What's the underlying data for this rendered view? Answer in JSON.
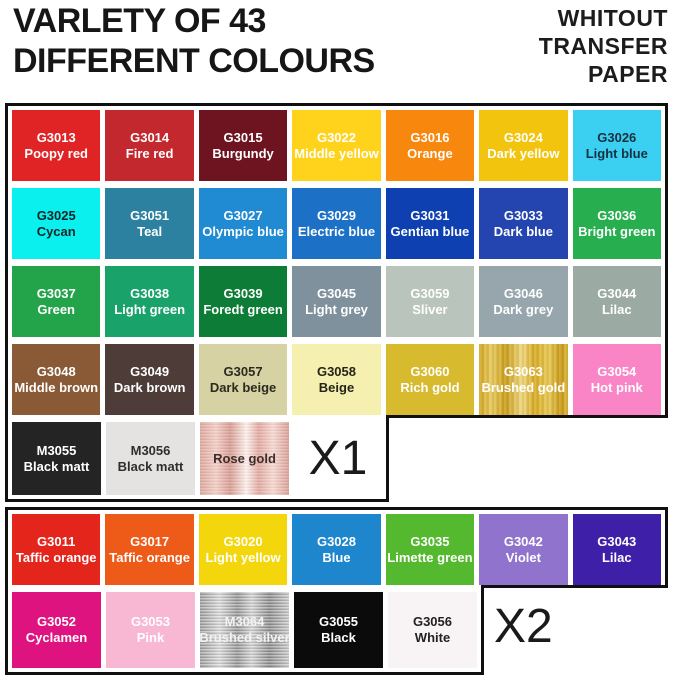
{
  "header": {
    "title_line1": "VARLETY OF 43",
    "title_line2": "DIFFERENT COLOURS",
    "note_line1": "WHITOUT",
    "note_line2": "TRANSFER",
    "note_line3": "PAPER"
  },
  "border_color": "#101010",
  "sections": [
    {
      "quantity_label": "X1",
      "main_rows": [
        [
          {
            "code": "G3013",
            "name": "Poopy red",
            "bg": "#e02425",
            "text_color": "#ffffff",
            "finish": "solid"
          },
          {
            "code": "G3014",
            "name": "Fire red",
            "bg": "#c2282d",
            "text_color": "#ffffff",
            "finish": "solid"
          },
          {
            "code": "G3015",
            "name": "Burgundy",
            "bg": "#6d1420",
            "text_color": "#ffffff",
            "finish": "solid"
          },
          {
            "code": "G3022",
            "name": "Middle yellow",
            "bg": "#ffd21c",
            "text_color": "#ffffff",
            "finish": "solid"
          },
          {
            "code": "G3016",
            "name": "Orange",
            "bg": "#f8870e",
            "text_color": "#ffffff",
            "finish": "solid"
          },
          {
            "code": "G3024",
            "name": "Dark yellow",
            "bg": "#f2c40e",
            "text_color": "#ffffff",
            "finish": "solid"
          },
          {
            "code": "G3026",
            "name": "Light blue",
            "bg": "#3bd0f1",
            "text_color": "#16303f",
            "finish": "solid"
          }
        ],
        [
          {
            "code": "G3025",
            "name": "Cycan",
            "bg": "#0af0ee",
            "text_color": "#102525",
            "finish": "solid"
          },
          {
            "code": "G3051",
            "name": "Teal",
            "bg": "#2d81a0",
            "text_color": "#ffffff",
            "finish": "solid"
          },
          {
            "code": "G3027",
            "name": "Olympic blue",
            "bg": "#208bd2",
            "text_color": "#ffffff",
            "finish": "solid"
          },
          {
            "code": "G3029",
            "name": "Electric blue",
            "bg": "#1c70c6",
            "text_color": "#ffffff",
            "finish": "solid"
          },
          {
            "code": "G3031",
            "name": "Gentian blue",
            "bg": "#0e40b1",
            "text_color": "#ffffff",
            "finish": "solid"
          },
          {
            "code": "G3033",
            "name": "Dark blue",
            "bg": "#2444b0",
            "text_color": "#ffffff",
            "finish": "solid"
          },
          {
            "code": "G3036",
            "name": "Bright green",
            "bg": "#27ae4f",
            "text_color": "#ffffff",
            "finish": "solid"
          }
        ],
        [
          {
            "code": "G3037",
            "name": "Green",
            "bg": "#23a44b",
            "text_color": "#ffffff",
            "finish": "solid"
          },
          {
            "code": "G3038",
            "name": "Light green",
            "bg": "#19a36b",
            "text_color": "#ffffff",
            "finish": "solid"
          },
          {
            "code": "G3039",
            "name": "Foredt green",
            "bg": "#0d7c36",
            "text_color": "#ffffff",
            "finish": "solid"
          },
          {
            "code": "G3045",
            "name": "Light grey",
            "bg": "#7f919c",
            "text_color": "#ffffff",
            "finish": "solid"
          },
          {
            "code": "G3059",
            "name": "Sliver",
            "bg": "#b9c4bd",
            "text_color": "#ffffff",
            "finish": "solid"
          },
          {
            "code": "G3046",
            "name": "Dark grey",
            "bg": "#97a5ad",
            "text_color": "#ffffff",
            "finish": "solid"
          },
          {
            "code": "G3044",
            "name": "Lilac",
            "bg": "#9caaa4",
            "text_color": "#ffffff",
            "finish": "solid"
          }
        ],
        [
          {
            "code": "G3048",
            "name": "Middle brown",
            "bg": "#8a5a36",
            "text_color": "#ffffff",
            "finish": "solid"
          },
          {
            "code": "G3049",
            "name": "Dark brown",
            "bg": "#4d3c38",
            "text_color": "#ffffff",
            "finish": "solid"
          },
          {
            "code": "G3057",
            "name": "Dark beige",
            "bg": "#d6d2a3",
            "text_color": "#2a2a20",
            "finish": "solid"
          },
          {
            "code": "G3058",
            "name": "Beige",
            "bg": "#f6f0b0",
            "text_color": "#242418",
            "finish": "solid"
          },
          {
            "code": "G3060",
            "name": "Rich gold",
            "bg": "#d8ba2f",
            "text_color": "#ffffff",
            "finish": "solid"
          },
          {
            "code": "G3063",
            "name": "Brushed gold",
            "bg": "#d8ab22",
            "text_color": "#ffffff",
            "finish": "brushed-gold"
          },
          {
            "code": "G3054",
            "name": "Hot pink",
            "bg": "#f985c7",
            "text_color": "#ffffff",
            "finish": "solid"
          }
        ]
      ],
      "sub_row": [
        {
          "code": "M3055",
          "name": "Black matt",
          "bg": "#242424",
          "text_color": "#ffffff",
          "finish": "solid"
        },
        {
          "code": "M3056",
          "name": "Black matt",
          "bg": "#e4e3e1",
          "text_color": "#2e2e2e",
          "finish": "solid"
        },
        {
          "code": "",
          "name": "Rose gold",
          "bg": "#e7b3aa",
          "text_color": "#3d2e2b",
          "finish": "rose-gold"
        }
      ]
    },
    {
      "quantity_label": "X2",
      "main_rows": [
        [
          {
            "code": "G3011",
            "name": "Taffic orange",
            "bg": "#e3251c",
            "text_color": "#ffffff",
            "finish": "solid"
          },
          {
            "code": "G3017",
            "name": "Taffic orange",
            "bg": "#ee5b18",
            "text_color": "#ffffff",
            "finish": "solid"
          },
          {
            "code": "G3020",
            "name": "Light yellow",
            "bg": "#f4d60d",
            "text_color": "#ffffff",
            "finish": "solid"
          },
          {
            "code": "G3028",
            "name": "Blue",
            "bg": "#1d86cc",
            "text_color": "#ffffff",
            "finish": "solid"
          },
          {
            "code": "G3035",
            "name": "Limette green",
            "bg": "#55b930",
            "text_color": "#ffffff",
            "finish": "solid"
          },
          {
            "code": "G3042",
            "name": "Violet",
            "bg": "#8f73cc",
            "text_color": "#ffffff",
            "finish": "solid"
          },
          {
            "code": "G3043",
            "name": "Lilac",
            "bg": "#3d20a7",
            "text_color": "#ffffff",
            "finish": "solid"
          }
        ]
      ],
      "sub_row": [
        {
          "code": "G3052",
          "name": "Cyclamen",
          "bg": "#df1380",
          "text_color": "#ffffff",
          "finish": "solid"
        },
        {
          "code": "G3053",
          "name": "Pink",
          "bg": "#f8b8d3",
          "text_color": "#ffffff",
          "finish": "solid"
        },
        {
          "code": "M3064",
          "name": "Brushed silver",
          "bg": "#c0c0c0",
          "text_color": "#f2f2f2",
          "finish": "brushed-silver"
        },
        {
          "code": "G3055",
          "name": "Black",
          "bg": "#0b0b0b",
          "text_color": "#ffffff",
          "finish": "solid"
        },
        {
          "code": "G3056",
          "name": "White",
          "bg": "#f8f4f5",
          "text_color": "#222222",
          "finish": "solid"
        }
      ]
    }
  ]
}
